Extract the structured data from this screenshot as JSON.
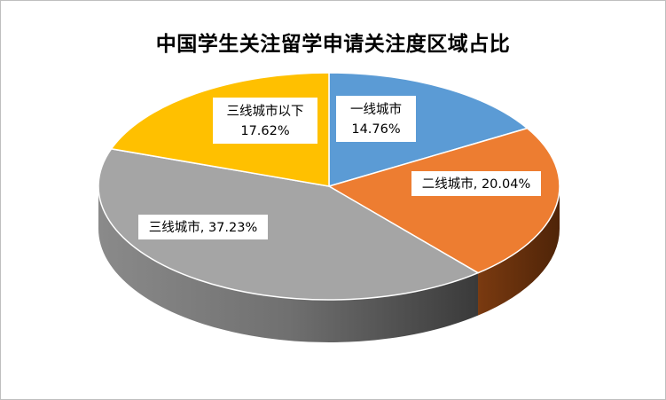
{
  "chart_data": {
    "type": "pie",
    "title": "中国学生关注留学申请关注度区域占比",
    "slices": [
      {
        "name": "一线城市",
        "value": 14.76,
        "pct_label": "14.76%",
        "color": "#5b9bd5",
        "side_color": "#2e5f8f",
        "label_lines": [
          "一线城市",
          "14.76%"
        ]
      },
      {
        "name": "二线城市",
        "value": 20.04,
        "pct_label": "20.04%",
        "color": "#ed7d31",
        "side_color": "#7a3a10",
        "label_lines": [
          "二线城市, 20.04%"
        ]
      },
      {
        "name": "三线城市",
        "value": 37.23,
        "pct_label": "37.23%",
        "color": "#a5a5a5",
        "side_color": "#6e6e6e",
        "label_lines": [
          "三线城市, 37.23%"
        ]
      },
      {
        "name": "三线城市以下",
        "value": 17.62,
        "pct_label": "17.62%",
        "color": "#ffc000",
        "side_color": "#b8860b",
        "label_lines": [
          "三线城市以下",
          "17.62%"
        ]
      }
    ],
    "grid": false,
    "legend": "none"
  }
}
